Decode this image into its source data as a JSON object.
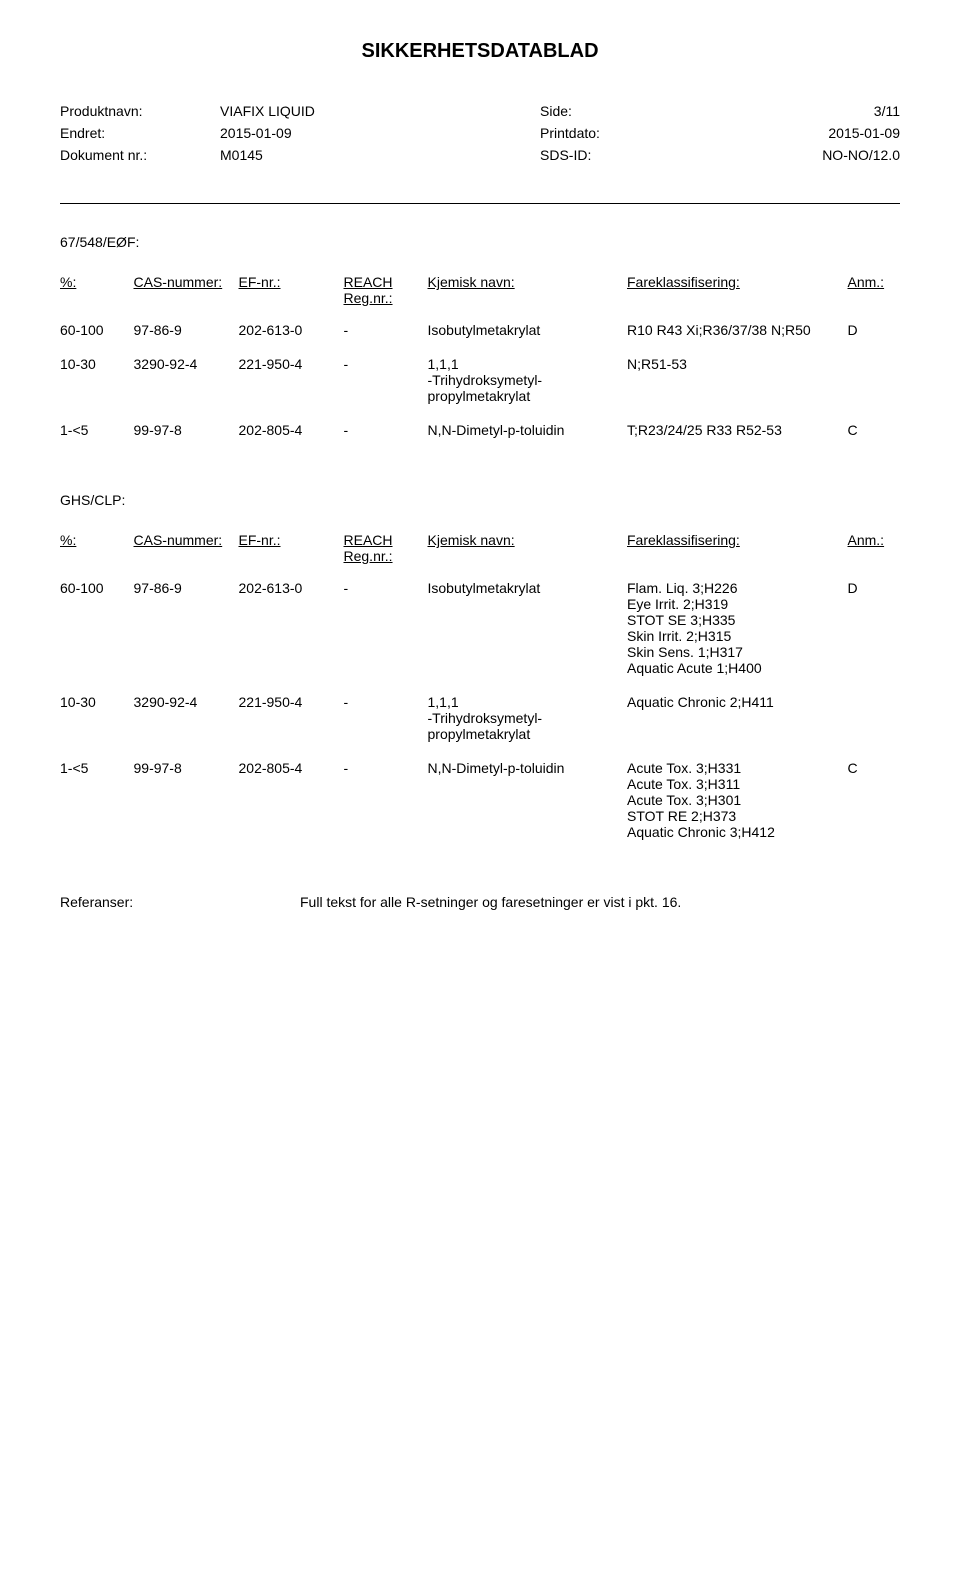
{
  "doc_title": "SIKKERHETSDATABLAD",
  "header": {
    "product_label": "Produktnavn:",
    "product_value": "VIAFIX LIQUID",
    "side_label": "Side:",
    "side_value": "3/11",
    "changed_label": "Endret:",
    "changed_value": "2015-01-09",
    "print_label": "Printdato:",
    "print_value": "2015-01-09",
    "docnr_label": "Dokument nr.:",
    "docnr_value": "M0145",
    "sds_label": "SDS-ID:",
    "sds_value": "NO-NO/12.0"
  },
  "section1_label": "67/548/EØF:",
  "section2_label": "GHS/CLP:",
  "columns": {
    "pct": "%:",
    "cas": "CAS-nummer:",
    "ef": "EF-nr.:",
    "reach": "REACH Reg.nr.:",
    "chem": "Kjemisk navn:",
    "hazard": "Fareklassifisering:",
    "anm": "Anm.:"
  },
  "table1": [
    {
      "pct": "60-100",
      "cas": "97-86-9",
      "ef": "202-613-0",
      "reach": "-",
      "chem": "Isobutylmetakrylat",
      "hazard": "R10 R43 Xi;R36/37/38 N;R50",
      "anm": "D"
    },
    {
      "pct": "10-30",
      "cas": "3290-92-4",
      "ef": "221-950-4",
      "reach": "-",
      "chem": "1,1,1\n-Trihydroksymetyl-\npropylmetakrylat",
      "hazard": "N;R51-53",
      "anm": ""
    },
    {
      "pct": "1-<5",
      "cas": "99-97-8",
      "ef": "202-805-4",
      "reach": "-",
      "chem": "N,N-Dimetyl-p-toluidin",
      "hazard": "T;R23/24/25 R33 R52-53",
      "anm": "C"
    }
  ],
  "table2": [
    {
      "pct": "60-100",
      "cas": "97-86-9",
      "ef": "202-613-0",
      "reach": "-",
      "chem": "Isobutylmetakrylat",
      "hazard": "Flam. Liq. 3;H226\nEye Irrit. 2;H319\nSTOT SE 3;H335\nSkin Irrit. 2;H315\nSkin Sens. 1;H317\nAquatic Acute 1;H400",
      "anm": "D"
    },
    {
      "pct": "10-30",
      "cas": "3290-92-4",
      "ef": "221-950-4",
      "reach": "-",
      "chem": "1,1,1\n-Trihydroksymetyl-\npropylmetakrylat",
      "hazard": "Aquatic Chronic 2;H411",
      "anm": ""
    },
    {
      "pct": "1-<5",
      "cas": "99-97-8",
      "ef": "202-805-4",
      "reach": "-",
      "chem": "N,N-Dimetyl-p-toluidin",
      "hazard": "Acute Tox. 3;H331\nAcute Tox. 3;H311\nAcute Tox. 3;H301\nSTOT RE 2;H373\nAquatic Chronic 3;H412",
      "anm": "C"
    }
  ],
  "references": {
    "label": "Referanser:",
    "value": "Full tekst for alle R-setninger og faresetninger er vist i pkt. 16."
  }
}
